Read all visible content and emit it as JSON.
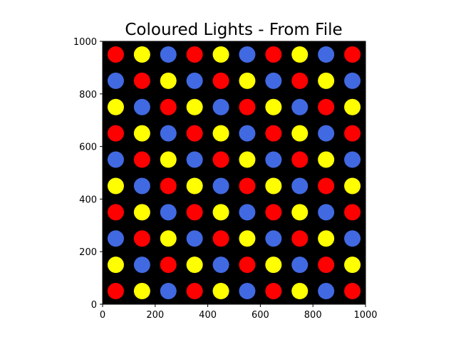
{
  "chart_data": {
    "type": "scatter",
    "title": "Coloured Lights - From File",
    "xlabel": "",
    "ylabel": "",
    "xlim": [
      0,
      1000
    ],
    "ylim": [
      0,
      1000
    ],
    "x_ticks": [
      0,
      200,
      400,
      600,
      800,
      1000
    ],
    "y_ticks": [
      0,
      200,
      400,
      600,
      800,
      1000
    ],
    "grid": false,
    "background_color": "#000000",
    "colors": {
      "red": "#ff0000",
      "yellow": "#ffff00",
      "blue": "#4169e1"
    },
    "x_positions": [
      50,
      150,
      250,
      350,
      450,
      550,
      650,
      750,
      850,
      950
    ],
    "rows": [
      {
        "y": 950,
        "colors": [
          "red",
          "yellow",
          "blue",
          "red",
          "yellow",
          "blue",
          "red",
          "yellow",
          "blue",
          "red"
        ]
      },
      {
        "y": 850,
        "colors": [
          "blue",
          "red",
          "yellow",
          "blue",
          "red",
          "yellow",
          "blue",
          "red",
          "yellow",
          "blue"
        ]
      },
      {
        "y": 750,
        "colors": [
          "yellow",
          "blue",
          "red",
          "yellow",
          "blue",
          "red",
          "yellow",
          "blue",
          "red",
          "yellow"
        ]
      },
      {
        "y": 650,
        "colors": [
          "red",
          "yellow",
          "blue",
          "red",
          "yellow",
          "blue",
          "red",
          "yellow",
          "blue",
          "red"
        ]
      },
      {
        "y": 550,
        "colors": [
          "blue",
          "red",
          "yellow",
          "blue",
          "red",
          "yellow",
          "blue",
          "red",
          "yellow",
          "blue"
        ]
      },
      {
        "y": 450,
        "colors": [
          "yellow",
          "blue",
          "red",
          "yellow",
          "blue",
          "red",
          "yellow",
          "blue",
          "red",
          "yellow"
        ]
      },
      {
        "y": 350,
        "colors": [
          "red",
          "yellow",
          "blue",
          "red",
          "yellow",
          "blue",
          "red",
          "yellow",
          "blue",
          "red"
        ]
      },
      {
        "y": 250,
        "colors": [
          "blue",
          "red",
          "yellow",
          "blue",
          "red",
          "yellow",
          "blue",
          "red",
          "yellow",
          "blue"
        ]
      },
      {
        "y": 150,
        "colors": [
          "yellow",
          "blue",
          "red",
          "yellow",
          "blue",
          "red",
          "yellow",
          "blue",
          "red",
          "yellow"
        ]
      },
      {
        "y": 50,
        "colors": [
          "red",
          "yellow",
          "blue",
          "red",
          "yellow",
          "blue",
          "red",
          "yellow",
          "blue",
          "red"
        ]
      }
    ]
  }
}
